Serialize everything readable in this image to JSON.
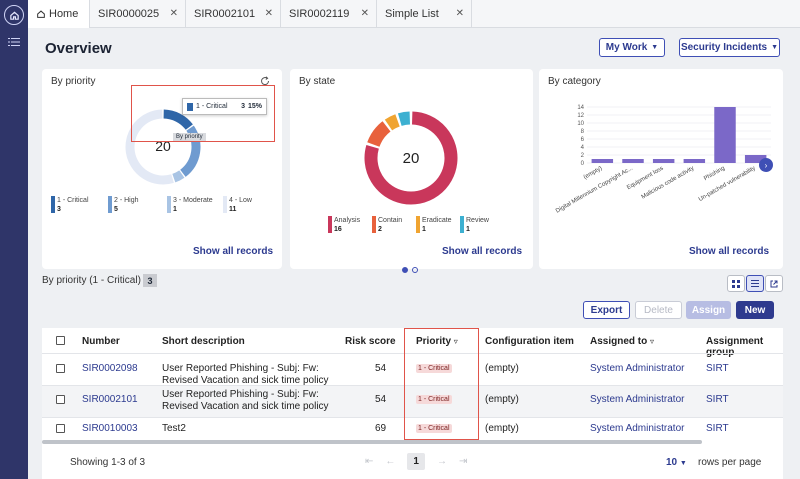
{
  "tabs": [
    {
      "label": "Home",
      "active": true
    },
    {
      "label": "SIR0000025"
    },
    {
      "label": "SIR0002101"
    },
    {
      "label": "SIR0002119"
    },
    {
      "label": "Simple List"
    }
  ],
  "header": {
    "title": "Overview",
    "my_work": "My Work",
    "security_incidents": "Security Incidents"
  },
  "priority_card": {
    "title": "By priority",
    "center": "20",
    "tooltip": {
      "label": "1 - Critical",
      "count": "3",
      "pct": "15%"
    },
    "hover_label": "By priority",
    "legend": [
      {
        "label": "1 - Critical",
        "value": "3",
        "color": "#2f66a8"
      },
      {
        "label": "2 - High",
        "value": "5",
        "color": "#6f9bd0"
      },
      {
        "label": "3 - Moderate",
        "value": "1",
        "color": "#a9c4e4"
      },
      {
        "label": "4 - Low",
        "value": "11",
        "color": "#e3e9f5"
      }
    ],
    "show_all": "Show all records"
  },
  "state_card": {
    "title": "By state",
    "center": "20",
    "legend": [
      {
        "label": "Analysis",
        "value": "16",
        "color": "#c9375b"
      },
      {
        "label": "Contain",
        "value": "2",
        "color": "#e8613c"
      },
      {
        "label": "Eradicate",
        "value": "1",
        "color": "#f0a431"
      },
      {
        "label": "Review",
        "value": "1",
        "color": "#3db0d1"
      }
    ],
    "show_all": "Show all records"
  },
  "category_card": {
    "title": "By category",
    "show_all": "Show all records"
  },
  "chart_data": [
    {
      "type": "pie",
      "title": "By priority",
      "labels": [
        "1 - Critical",
        "2 - High",
        "3 - Moderate",
        "4 - Low"
      ],
      "values": [
        3,
        5,
        1,
        11
      ]
    },
    {
      "type": "pie",
      "title": "By state",
      "labels": [
        "Analysis",
        "Contain",
        "Eradicate",
        "Review"
      ],
      "values": [
        16,
        2,
        1,
        1
      ]
    },
    {
      "type": "bar",
      "title": "By category",
      "categories": [
        "(empty)",
        "Digital Millennium Copyright Ac...",
        "Equipment loss",
        "Malicious code activity",
        "Phishing",
        "Un-patched vulnerability"
      ],
      "values": [
        1,
        1,
        1,
        1,
        14,
        2
      ],
      "yticks": [
        "0",
        "2",
        "4",
        "6",
        "8",
        "10",
        "12",
        "14"
      ],
      "ylim": [
        0,
        14
      ]
    }
  ],
  "list": {
    "label": "By priority (1 - Critical)",
    "count": "3",
    "buttons": {
      "export": "Export",
      "delete": "Delete",
      "assign": "Assign",
      "new": "New"
    },
    "columns": [
      "Number",
      "Short description",
      "Risk score",
      "Priority",
      "Configuration item",
      "Assigned to",
      "Assignment group"
    ],
    "rows": [
      {
        "number": "SIR0002098",
        "desc1": "User Reported Phishing - Subj: Fw:",
        "desc2": "Revised Vacation and sick time policy",
        "risk": "54",
        "priority": "1 - Critical",
        "ci": "(empty)",
        "assigned": "System Administrator",
        "group": "SIRT"
      },
      {
        "number": "SIR0002101",
        "desc1": "User Reported Phishing - Subj: Fw:",
        "desc2": "Revised Vacation and sick time policy",
        "risk": "54",
        "priority": "1 - Critical",
        "ci": "(empty)",
        "assigned": "System Administrator",
        "group": "SIRT"
      },
      {
        "number": "SIR0010003",
        "desc1": "Test2",
        "desc2": "",
        "risk": "69",
        "priority": "1 - Critical",
        "ci": "(empty)",
        "assigned": "System Administrator",
        "group": "SIRT"
      }
    ],
    "footer": {
      "showing": "Showing 1-3 of 3",
      "page": "1",
      "rows_per_page": "10",
      "rows_label": "rows per page"
    }
  }
}
